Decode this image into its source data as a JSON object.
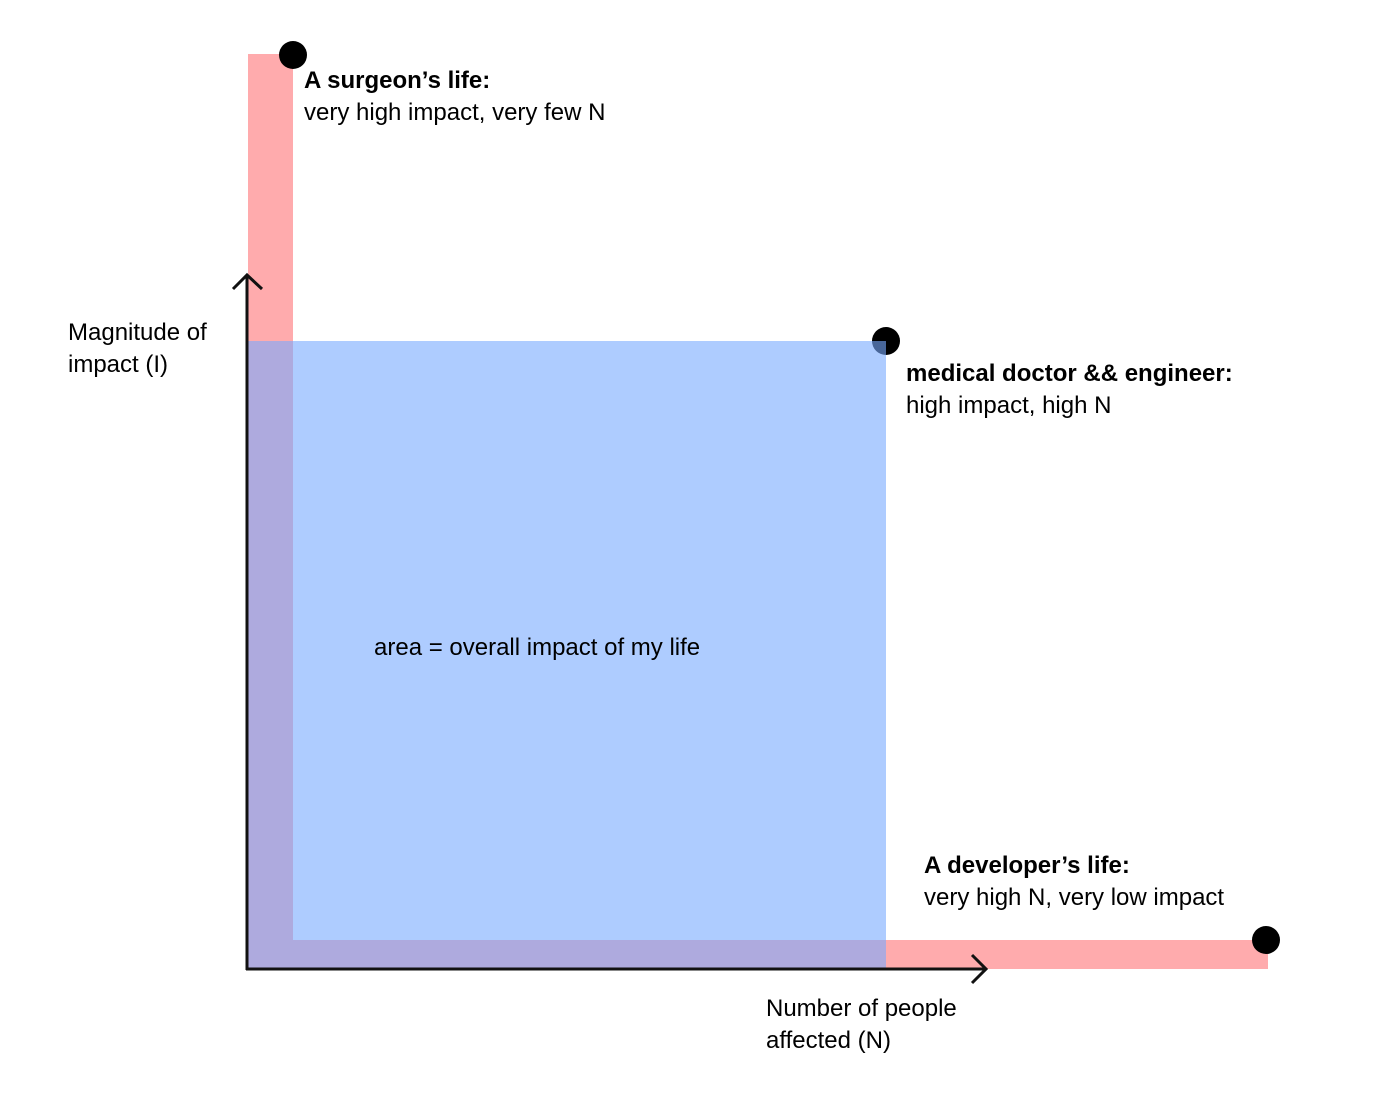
{
  "y_axis_label": {
    "lines": [
      "Magnitude of",
      "impact (I)"
    ]
  },
  "x_axis_label": {
    "lines": [
      "Number of people",
      "affected (N)"
    ]
  },
  "points": [
    {
      "title": "A surgeon’s life:",
      "description": "very high impact, very few N"
    },
    {
      "title": "medical doctor && engineer:",
      "description": "high impact, high N"
    },
    {
      "title": "A developer’s life:",
      "description": "very high N, very low impact"
    }
  ],
  "area_label": "area = overall impact of my life"
}
